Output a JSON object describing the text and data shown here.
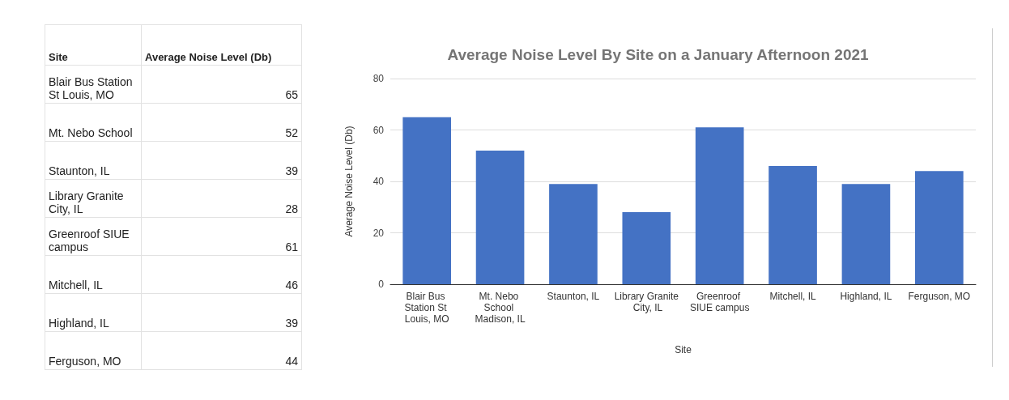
{
  "chart_data": [
    {
      "type": "other",
      "xlabel": "Site",
      "ylabel": "Average Noise Level (Db)",
      "categories": [
        "Blair Bus Station St Louis, MO",
        "Mt. Nebo School",
        "Staunton, IL",
        "Library Granite City, IL",
        "Greenroof SIUE campus",
        "Mitchell, IL",
        "Highland, IL",
        "Ferguson, MO"
      ],
      "values": [
        65,
        52,
        39,
        28,
        61,
        46,
        39,
        44
      ],
      "data_labels": true
    },
    {
      "type": "bar",
      "title": "Average Noise Level By Site on a January Afternoon 2021",
      "xlabel": "Site",
      "ylabel": "Average Noise Level (Db)",
      "categories": [
        "Blair Bus Station St Louis, MO",
        "Mt. Nebo School Madison, IL",
        "Staunton, IL",
        "Library Granite City, IL",
        "Greenroof SIUE campus",
        "Mitchell, IL",
        "Highland, IL",
        "Ferguson, MO"
      ],
      "values": [
        65,
        52,
        39,
        28,
        61,
        46,
        39,
        44
      ],
      "color": "#4472c4",
      "ylim": [
        0,
        80
      ],
      "yticks": [
        0,
        20,
        40,
        60,
        80
      ],
      "grid": "y"
    }
  ]
}
